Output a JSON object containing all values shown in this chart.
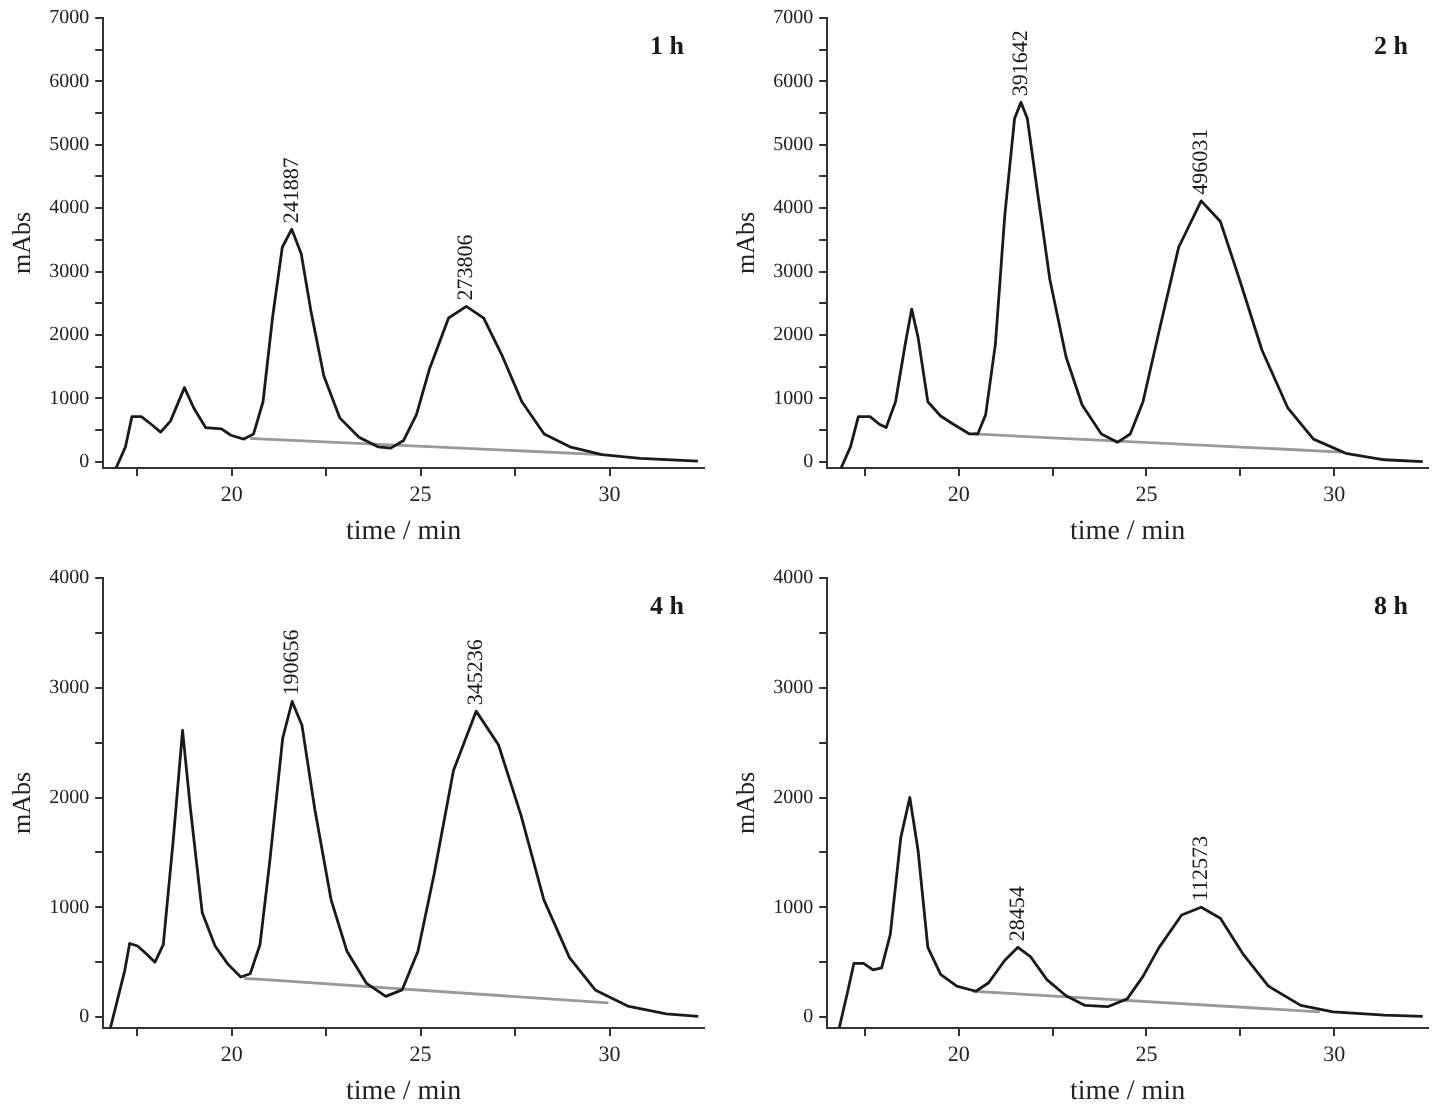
{
  "chart_data": [
    {
      "type": "line",
      "xlabel": "time / min",
      "ylabel": "mAbs",
      "xlim": [
        16.6,
        32.5
      ],
      "xticks": [
        {
          "value": 17.5,
          "label": null
        },
        20,
        {
          "value": 22.5,
          "label": null
        },
        25,
        {
          "value": 27.5,
          "label": null
        },
        30
      ],
      "ylim": [
        -100,
        7000
      ],
      "yticks": [
        0,
        {
          "value": 500,
          "label": null
        },
        1000,
        {
          "value": 1500,
          "label": null
        },
        2000,
        {
          "value": 2500,
          "label": null
        },
        3000,
        {
          "value": 3500,
          "label": null
        },
        4000,
        {
          "value": 4500,
          "label": null
        },
        5000,
        {
          "value": 5500,
          "label": null
        },
        6000,
        {
          "value": 6500,
          "label": null
        },
        7000
      ],
      "grid": false,
      "legend": false,
      "marker": "none",
      "line_style": "solid",
      "series": [
        {
          "color": "#1a1a1a",
          "x": [
            16.94,
            17.19,
            17.36,
            17.61,
            17.87,
            18.12,
            18.38,
            18.75,
            19.0,
            19.31,
            19.73,
            19.98,
            20.32,
            20.58,
            20.83,
            21.08,
            21.34,
            21.59,
            21.84,
            22.1,
            22.44,
            22.86,
            23.37,
            23.87,
            24.21,
            24.55,
            24.89,
            25.23,
            25.74,
            26.21,
            26.67,
            27.17,
            27.68,
            28.27,
            28.95,
            29.8,
            30.81,
            32.34
          ],
          "values": [
            -100,
            234,
            711,
            711,
            590,
            467,
            640,
            1168,
            843,
            538,
            518,
            417,
            356,
            437,
            945,
            2266,
            3383,
            3668,
            3282,
            2367,
            1351,
            691,
            386,
            234,
            213,
            335,
            742,
            1453,
            2266,
            2449,
            2266,
            1656,
            945,
            437,
            234,
            112,
            51,
            10
          ]
        },
        {
          "color": "#999999",
          "x": [
            20.49,
            29.8
          ],
          "values": [
            366,
            112
          ]
        }
      ],
      "annotations": [
        "1 h",
        {
          "text": "241887",
          "x": 21.59,
          "y": 3668
        },
        {
          "text": "273806",
          "x": 26.21,
          "y": 2449
        }
      ]
    },
    {
      "type": "line",
      "xlabel": "time / min",
      "ylabel": "mAbs",
      "xlim": [
        16.5,
        32.5
      ],
      "xticks": [
        {
          "value": 17.5,
          "label": null
        },
        20,
        {
          "value": 22.5,
          "label": null
        },
        25,
        {
          "value": 27.5,
          "label": null
        },
        30
      ],
      "ylim": [
        -100,
        7000
      ],
      "yticks": [
        0,
        {
          "value": 500,
          "label": null
        },
        1000,
        {
          "value": 1500,
          "label": null
        },
        2000,
        {
          "value": 2500,
          "label": null
        },
        3000,
        {
          "value": 3500,
          "label": null
        },
        4000,
        {
          "value": 4500,
          "label": null
        },
        5000,
        {
          "value": 5500,
          "label": null
        },
        6000,
        {
          "value": 6500,
          "label": null
        },
        7000
      ],
      "grid": false,
      "legend": false,
      "marker": "none",
      "line_style": "solid",
      "series": [
        {
          "color": "#1a1a1a",
          "x": [
            16.87,
            17.12,
            17.33,
            17.64,
            17.89,
            18.07,
            18.32,
            18.58,
            18.75,
            18.92,
            19.18,
            19.52,
            19.86,
            20.29,
            20.51,
            20.72,
            20.98,
            21.23,
            21.49,
            21.66,
            21.83,
            22.09,
            22.43,
            22.86,
            23.29,
            23.8,
            24.23,
            24.57,
            24.91,
            25.34,
            25.86,
            26.46,
            26.97,
            27.48,
            28.08,
            28.77,
            29.45,
            30.31,
            31.34,
            32.36
          ],
          "values": [
            -100,
            234,
            711,
            711,
            590,
            538,
            945,
            1859,
            2408,
            1961,
            945,
            721,
            590,
            437,
            437,
            742,
            1859,
            3891,
            5415,
            5669,
            5415,
            4298,
            2875,
            1656,
            894,
            437,
            305,
            437,
            945,
            2062,
            3383,
            4115,
            3790,
            2875,
            1758,
            843,
            356,
            132,
            30,
            0
          ]
        },
        {
          "color": "#999999",
          "x": [
            20.38,
            30.22
          ],
          "values": [
            437,
            152
          ]
        }
      ],
      "annotations": [
        "2 h",
        {
          "text": "391642",
          "x": 21.66,
          "y": 5669
        },
        {
          "text": "496031",
          "x": 26.46,
          "y": 4115
        }
      ]
    },
    {
      "type": "line",
      "xlabel": "time / min",
      "ylabel": "mAbs",
      "xlim": [
        16.6,
        32.5
      ],
      "xticks": [
        {
          "value": 17.5,
          "label": null
        },
        20,
        {
          "value": 22.5,
          "label": null
        },
        25,
        {
          "value": 27.5,
          "label": null
        },
        30
      ],
      "ylim": [
        -100,
        4000
      ],
      "yticks": [
        0,
        {
          "value": 500,
          "label": null
        },
        1000,
        {
          "value": 1500,
          "label": null
        },
        2000,
        {
          "value": 2500,
          "label": null
        },
        3000,
        {
          "value": 3500,
          "label": null
        },
        4000
      ],
      "grid": false,
      "legend": false,
      "marker": "none",
      "line_style": "solid",
      "series": [
        {
          "color": "#1a1a1a",
          "x": [
            16.79,
            17.0,
            17.17,
            17.3,
            17.51,
            17.76,
            17.97,
            18.19,
            18.45,
            18.7,
            18.91,
            19.22,
            19.56,
            19.9,
            20.24,
            20.49,
            20.75,
            21.01,
            21.35,
            21.6,
            21.86,
            22.2,
            22.63,
            23.05,
            23.57,
            24.08,
            24.51,
            24.93,
            25.36,
            25.87,
            26.47,
            27.06,
            27.66,
            28.26,
            28.94,
            29.62,
            30.48,
            31.5,
            32.35
          ],
          "values": [
            -100,
            188,
            423,
            670,
            647,
            570,
            500,
            659,
            1599,
            2611,
            1893,
            953,
            647,
            482,
            365,
            394,
            659,
            1423,
            2540,
            2875,
            2658,
            1893,
            1070,
            600,
            306,
            188,
            247,
            600,
            1305,
            2246,
            2787,
            2481,
            1835,
            1070,
            541,
            247,
            100,
            29,
            6
          ]
        },
        {
          "color": "#999999",
          "x": [
            20.32,
            29.97
          ],
          "values": [
            353,
            129
          ]
        }
      ],
      "annotations": [
        "4 h",
        {
          "text": "190656",
          "x": 21.6,
          "y": 2875
        },
        {
          "text": "345236",
          "x": 26.47,
          "y": 2787
        }
      ]
    },
    {
      "type": "line",
      "xlabel": "time / min",
      "ylabel": "mAbs",
      "xlim": [
        16.5,
        32.5
      ],
      "xticks": [
        {
          "value": 17.5,
          "label": null
        },
        20,
        {
          "value": 22.5,
          "label": null
        },
        25,
        {
          "value": 27.5,
          "label": null
        },
        30
      ],
      "ylim": [
        -100,
        4000
      ],
      "yticks": [
        0,
        {
          "value": 500,
          "label": null
        },
        1000,
        {
          "value": 1500,
          "label": null
        },
        2000,
        {
          "value": 2500,
          "label": null
        },
        3000,
        {
          "value": 3500,
          "label": null
        },
        4000
      ],
      "grid": false,
      "legend": false,
      "marker": "none",
      "line_style": "solid",
      "series": [
        {
          "color": "#1a1a1a",
          "x": [
            16.82,
            17.04,
            17.21,
            17.47,
            17.72,
            17.95,
            18.18,
            18.46,
            18.7,
            18.92,
            19.18,
            19.52,
            19.95,
            20.46,
            20.8,
            21.23,
            21.58,
            21.92,
            22.35,
            22.86,
            23.37,
            23.97,
            24.49,
            24.91,
            25.34,
            25.94,
            26.46,
            26.97,
            27.57,
            28.25,
            29.11,
            29.97,
            31.34,
            32.36
          ],
          "values": [
            -100,
            223,
            488,
            488,
            429,
            447,
            753,
            1635,
            2000,
            1517,
            635,
            388,
            282,
            235,
            312,
            517,
            635,
            547,
            341,
            194,
            106,
            94,
            165,
            370,
            635,
            929,
            1000,
            900,
            576,
            282,
            106,
            47,
            18,
            6
          ]
        },
        {
          "color": "#999999",
          "x": [
            20.38,
            29.62
          ],
          "values": [
            235,
            47
          ]
        }
      ],
      "annotations": [
        "8 h",
        {
          "text": "28454",
          "x": 21.58,
          "y": 635
        },
        {
          "text": "112573",
          "x": 26.46,
          "y": 1000
        }
      ]
    }
  ]
}
